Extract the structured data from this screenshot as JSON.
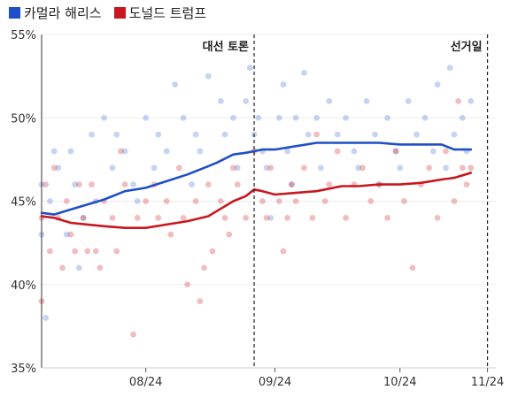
{
  "legend": [
    {
      "name": "카멀라 해리스",
      "color": "#1f4fc8"
    },
    {
      "name": "도널드 트럼프",
      "color": "#c8171e"
    }
  ],
  "chart_data": {
    "type": "scatter",
    "y_tick_labels": [
      "55%",
      "50%",
      "45%",
      "40%",
      "35%"
    ],
    "y_tick_values": [
      55,
      50,
      45,
      40,
      35
    ],
    "ylim": [
      35,
      55
    ],
    "x_range": [
      "2024-07-21",
      "2024-11-07"
    ],
    "x_tick_labels": [
      "08/24",
      "09/24",
      "10/24",
      "11/24"
    ],
    "x_tick_dates": [
      "2024-08-15",
      "2024-09-15",
      "2024-10-15",
      "2024-11-05"
    ],
    "grid": true,
    "legend_position": "top-left",
    "annotations": [
      {
        "label": "대선 토론",
        "date": "2024-09-10"
      },
      {
        "label": "선거일",
        "date": "2024-11-05"
      }
    ],
    "series": [
      {
        "name": "카멀라 해리스",
        "color": "#1f4fc8",
        "trend": [
          [
            "2024-07-21",
            44.3
          ],
          [
            "2024-07-24",
            44.2
          ],
          [
            "2024-07-28",
            44.5
          ],
          [
            "2024-08-01",
            44.8
          ],
          [
            "2024-08-05",
            45.1
          ],
          [
            "2024-08-10",
            45.6
          ],
          [
            "2024-08-15",
            45.8
          ],
          [
            "2024-08-20",
            46.2
          ],
          [
            "2024-08-25",
            46.6
          ],
          [
            "2024-08-30",
            47.1
          ],
          [
            "2024-09-01",
            47.3
          ],
          [
            "2024-09-05",
            47.8
          ],
          [
            "2024-09-08",
            47.9
          ],
          [
            "2024-09-12",
            48.1
          ],
          [
            "2024-09-15",
            48.1
          ],
          [
            "2024-09-20",
            48.3
          ],
          [
            "2024-09-25",
            48.5
          ],
          [
            "2024-10-01",
            48.5
          ],
          [
            "2024-10-05",
            48.5
          ],
          [
            "2024-10-10",
            48.5
          ],
          [
            "2024-10-15",
            48.4
          ],
          [
            "2024-10-20",
            48.4
          ],
          [
            "2024-10-25",
            48.4
          ],
          [
            "2024-10-28",
            48.1
          ],
          [
            "2024-11-01",
            48.1
          ]
        ],
        "polls": [
          [
            "2024-07-21",
            46
          ],
          [
            "2024-07-21",
            43
          ],
          [
            "2024-07-22",
            38
          ],
          [
            "2024-07-23",
            45
          ],
          [
            "2024-07-24",
            48
          ],
          [
            "2024-07-25",
            47
          ],
          [
            "2024-07-27",
            43
          ],
          [
            "2024-07-28",
            48
          ],
          [
            "2024-07-29",
            46
          ],
          [
            "2024-07-30",
            41
          ],
          [
            "2024-07-31",
            44
          ],
          [
            "2024-08-02",
            49
          ],
          [
            "2024-08-03",
            45
          ],
          [
            "2024-08-05",
            50
          ],
          [
            "2024-08-07",
            47
          ],
          [
            "2024-08-08",
            49
          ],
          [
            "2024-08-10",
            48
          ],
          [
            "2024-08-12",
            46
          ],
          [
            "2024-08-13",
            45
          ],
          [
            "2024-08-15",
            50
          ],
          [
            "2024-08-17",
            47
          ],
          [
            "2024-08-18",
            49
          ],
          [
            "2024-08-20",
            48
          ],
          [
            "2024-08-22",
            52
          ],
          [
            "2024-08-24",
            50
          ],
          [
            "2024-08-26",
            46
          ],
          [
            "2024-08-27",
            49
          ],
          [
            "2024-08-28",
            48
          ],
          [
            "2024-08-30",
            52.5
          ],
          [
            "2024-09-02",
            51
          ],
          [
            "2024-09-03",
            49
          ],
          [
            "2024-09-05",
            50
          ],
          [
            "2024-09-06",
            47
          ],
          [
            "2024-09-08",
            51
          ],
          [
            "2024-09-09",
            53
          ],
          [
            "2024-09-10",
            49
          ],
          [
            "2024-09-11",
            50
          ],
          [
            "2024-09-12",
            48
          ],
          [
            "2024-09-13",
            47
          ],
          [
            "2024-09-14",
            44
          ],
          [
            "2024-09-16",
            50
          ],
          [
            "2024-09-17",
            52
          ],
          [
            "2024-09-18",
            48
          ],
          [
            "2024-09-19",
            46
          ],
          [
            "2024-09-20",
            50
          ],
          [
            "2024-09-22",
            52.7
          ],
          [
            "2024-09-23",
            49
          ],
          [
            "2024-09-25",
            50
          ],
          [
            "2024-09-26",
            47
          ],
          [
            "2024-09-28",
            51
          ],
          [
            "2024-09-30",
            49
          ],
          [
            "2024-10-02",
            50
          ],
          [
            "2024-10-04",
            48
          ],
          [
            "2024-10-05",
            47
          ],
          [
            "2024-10-07",
            51
          ],
          [
            "2024-10-09",
            49
          ],
          [
            "2024-10-10",
            46
          ],
          [
            "2024-10-12",
            50
          ],
          [
            "2024-10-14",
            48
          ],
          [
            "2024-10-15",
            47
          ],
          [
            "2024-10-17",
            51
          ],
          [
            "2024-10-19",
            49
          ],
          [
            "2024-10-21",
            50
          ],
          [
            "2024-10-23",
            48
          ],
          [
            "2024-10-24",
            52
          ],
          [
            "2024-10-26",
            47
          ],
          [
            "2024-10-27",
            53
          ],
          [
            "2024-10-28",
            49
          ],
          [
            "2024-10-30",
            50
          ],
          [
            "2024-10-31",
            48
          ],
          [
            "2024-11-01",
            51
          ]
        ]
      },
      {
        "name": "도널드 트럼프",
        "color": "#c8171e",
        "trend": [
          [
            "2024-07-21",
            44.1
          ],
          [
            "2024-07-24",
            44.0
          ],
          [
            "2024-07-28",
            43.7
          ],
          [
            "2024-08-01",
            43.6
          ],
          [
            "2024-08-05",
            43.5
          ],
          [
            "2024-08-10",
            43.4
          ],
          [
            "2024-08-15",
            43.4
          ],
          [
            "2024-08-20",
            43.6
          ],
          [
            "2024-08-25",
            43.8
          ],
          [
            "2024-08-30",
            44.1
          ],
          [
            "2024-09-01",
            44.4
          ],
          [
            "2024-09-05",
            45.0
          ],
          [
            "2024-09-08",
            45.3
          ],
          [
            "2024-09-10",
            45.7
          ],
          [
            "2024-09-12",
            45.6
          ],
          [
            "2024-09-15",
            45.4
          ],
          [
            "2024-09-20",
            45.5
          ],
          [
            "2024-09-25",
            45.6
          ],
          [
            "2024-10-01",
            45.9
          ],
          [
            "2024-10-05",
            45.9
          ],
          [
            "2024-10-10",
            46.0
          ],
          [
            "2024-10-15",
            46.0
          ],
          [
            "2024-10-20",
            46.1
          ],
          [
            "2024-10-25",
            46.3
          ],
          [
            "2024-10-28",
            46.4
          ],
          [
            "2024-11-01",
            46.7
          ]
        ],
        "polls": [
          [
            "2024-07-21",
            39
          ],
          [
            "2024-07-21",
            44
          ],
          [
            "2024-07-22",
            46
          ],
          [
            "2024-07-23",
            42
          ],
          [
            "2024-07-24",
            47
          ],
          [
            "2024-07-25",
            44
          ],
          [
            "2024-07-26",
            41
          ],
          [
            "2024-07-27",
            45
          ],
          [
            "2024-07-28",
            43
          ],
          [
            "2024-07-29",
            42
          ],
          [
            "2024-07-30",
            46
          ],
          [
            "2024-07-31",
            44
          ],
          [
            "2024-08-01",
            42
          ],
          [
            "2024-08-02",
            46
          ],
          [
            "2024-08-03",
            42
          ],
          [
            "2024-08-04",
            41
          ],
          [
            "2024-08-05",
            45
          ],
          [
            "2024-08-07",
            44
          ],
          [
            "2024-08-08",
            42
          ],
          [
            "2024-08-09",
            48
          ],
          [
            "2024-08-10",
            46
          ],
          [
            "2024-08-12",
            37
          ],
          [
            "2024-08-13",
            44
          ],
          [
            "2024-08-15",
            45
          ],
          [
            "2024-08-17",
            46
          ],
          [
            "2024-08-18",
            44
          ],
          [
            "2024-08-20",
            45
          ],
          [
            "2024-08-21",
            43
          ],
          [
            "2024-08-23",
            47
          ],
          [
            "2024-08-24",
            44
          ],
          [
            "2024-08-25",
            40
          ],
          [
            "2024-08-27",
            45
          ],
          [
            "2024-08-28",
            39
          ],
          [
            "2024-08-29",
            41
          ],
          [
            "2024-08-30",
            46
          ],
          [
            "2024-08-31",
            42
          ],
          [
            "2024-09-02",
            45
          ],
          [
            "2024-09-03",
            44
          ],
          [
            "2024-09-04",
            43
          ],
          [
            "2024-09-05",
            47
          ],
          [
            "2024-09-06",
            46
          ],
          [
            "2024-09-08",
            44
          ],
          [
            "2024-09-10",
            48
          ],
          [
            "2024-09-12",
            45
          ],
          [
            "2024-09-13",
            44
          ],
          [
            "2024-09-14",
            47
          ],
          [
            "2024-09-16",
            45
          ],
          [
            "2024-09-17",
            42
          ],
          [
            "2024-09-18",
            44
          ],
          [
            "2024-09-19",
            46
          ],
          [
            "2024-09-20",
            45
          ],
          [
            "2024-09-22",
            47
          ],
          [
            "2024-09-24",
            44
          ],
          [
            "2024-09-25",
            49
          ],
          [
            "2024-09-27",
            45
          ],
          [
            "2024-09-28",
            46
          ],
          [
            "2024-09-30",
            48
          ],
          [
            "2024-10-02",
            44
          ],
          [
            "2024-10-04",
            46
          ],
          [
            "2024-10-06",
            47
          ],
          [
            "2024-10-08",
            45
          ],
          [
            "2024-10-10",
            46
          ],
          [
            "2024-10-12",
            44
          ],
          [
            "2024-10-14",
            48
          ],
          [
            "2024-10-16",
            45
          ],
          [
            "2024-10-18",
            41
          ],
          [
            "2024-10-20",
            46
          ],
          [
            "2024-10-22",
            47
          ],
          [
            "2024-10-24",
            44
          ],
          [
            "2024-10-26",
            48
          ],
          [
            "2024-10-28",
            45
          ],
          [
            "2024-10-29",
            51
          ],
          [
            "2024-10-30",
            47
          ],
          [
            "2024-10-31",
            46
          ],
          [
            "2024-11-01",
            47
          ]
        ]
      }
    ]
  }
}
